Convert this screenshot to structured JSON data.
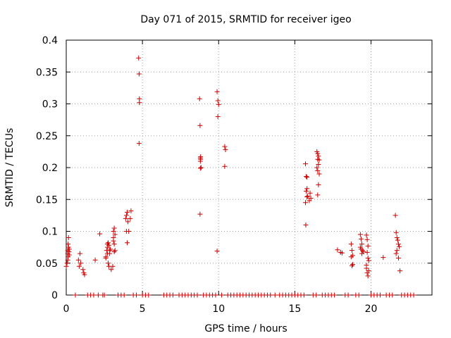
{
  "chart_data": {
    "type": "scatter",
    "title": "Day 071 of 2015, SRMTID for receiver igeo",
    "xlabel": "GPS time / hours",
    "ylabel": "SRMTID / TECUs",
    "xlim": [
      0,
      24
    ],
    "ylim": [
      0,
      0.4
    ],
    "xticks": [
      0,
      5,
      10,
      15,
      20
    ],
    "xtick_labels": [
      "0",
      "5",
      "10",
      "15",
      "20"
    ],
    "yticks": [
      0,
      0.05,
      0.1,
      0.15,
      0.2,
      0.25,
      0.3,
      0.35,
      0.4
    ],
    "ytick_labels": [
      "0",
      "0.05",
      "0.1",
      "0.15",
      "0.2",
      "0.25",
      "0.3",
      "0.35",
      "0.4"
    ],
    "grid": true,
    "marker": "plus",
    "color": "#cc0000",
    "series": [
      {
        "name": "SRMTID",
        "x": [
          0.0,
          0.05,
          0.1,
          0.1,
          0.12,
          0.15,
          0.18,
          0.2,
          0.15,
          0.1,
          0.2,
          0.12,
          0.8,
          0.85,
          0.9,
          0.95,
          1.1,
          1.15,
          1.2,
          1.9,
          2.2,
          2.6,
          2.65,
          2.7,
          2.7,
          2.75,
          2.8,
          2.85,
          2.9,
          2.75,
          2.8,
          2.85,
          2.6,
          2.7,
          3.1,
          3.15,
          3.2,
          3.1,
          3.15,
          3.2,
          3.1,
          3.05,
          3.15,
          2.95,
          3.9,
          3.95,
          4.0,
          4.05,
          4.1,
          3.95,
          4.0,
          4.2,
          4.25,
          4.75,
          4.78,
          4.8,
          4.8,
          4.78,
          8.75,
          8.78,
          8.8,
          8.8,
          8.82,
          8.85,
          8.8,
          8.82,
          8.78,
          9.9,
          9.95,
          10.0,
          9.95,
          9.9,
          10.4,
          10.45,
          10.4,
          15.7,
          15.75,
          15.8,
          15.8,
          15.75,
          15.85,
          15.7,
          15.8,
          15.72,
          16.0,
          16.05,
          15.95,
          16.45,
          16.5,
          16.55,
          16.5,
          16.6,
          16.55,
          16.45,
          16.5,
          16.6,
          16.55,
          16.5,
          17.8,
          18.0,
          18.1,
          18.7,
          18.75,
          18.8,
          18.7,
          18.8,
          18.75,
          19.3,
          19.35,
          19.4,
          19.3,
          19.45,
          19.5,
          19.35,
          19.4,
          19.7,
          19.75,
          19.8,
          19.75,
          19.8,
          19.7,
          19.85,
          19.75,
          19.8,
          19.7,
          19.85,
          20.8,
          21.6,
          21.65,
          21.7,
          21.75,
          21.8,
          21.85,
          21.7,
          21.65,
          21.8,
          21.9,
          0.6,
          1.4,
          1.6,
          1.8,
          2.1,
          2.4,
          2.5,
          3.4,
          3.6,
          3.8,
          4.4,
          4.6,
          5.0,
          5.2,
          5.4,
          6.4,
          6.6,
          6.8,
          7.0,
          7.4,
          7.6,
          7.8,
          8.0,
          8.2,
          8.4,
          8.6,
          9.0,
          9.2,
          9.4,
          9.6,
          9.8,
          10.2,
          10.6,
          10.8,
          11.0,
          11.2,
          11.4,
          11.6,
          11.8,
          12.0,
          12.2,
          12.4,
          12.6,
          12.8,
          13.0,
          13.2,
          13.4,
          13.7,
          14.0,
          14.2,
          14.4,
          14.6,
          14.8,
          15.0,
          15.2,
          15.4,
          15.6,
          16.2,
          16.4,
          16.8,
          17.0,
          17.2,
          17.4,
          17.6,
          18.3,
          18.5,
          19.0,
          19.2,
          20.0,
          20.2,
          20.4,
          20.6,
          21.0,
          21.2,
          21.4,
          22.0,
          22.2,
          22.4,
          22.6,
          22.8
        ],
        "y": [
          0.045,
          0.05,
          0.065,
          0.07,
          0.06,
          0.075,
          0.068,
          0.072,
          0.09,
          0.055,
          0.063,
          0.08,
          0.055,
          0.045,
          0.065,
          0.05,
          0.04,
          0.035,
          0.032,
          0.055,
          0.096,
          0.06,
          0.07,
          0.075,
          0.08,
          0.05,
          0.045,
          0.065,
          0.072,
          0.082,
          0.078,
          0.07,
          0.058,
          0.065,
          0.1,
          0.105,
          0.095,
          0.085,
          0.08,
          0.07,
          0.09,
          0.045,
          0.068,
          0.04,
          0.12,
          0.125,
          0.13,
          0.115,
          0.1,
          0.1,
          0.082,
          0.12,
          0.132,
          0.372,
          0.347,
          0.308,
          0.302,
          0.238,
          0.308,
          0.266,
          0.215,
          0.21,
          0.213,
          0.2,
          0.199,
          0.217,
          0.127,
          0.319,
          0.305,
          0.299,
          0.28,
          0.069,
          0.233,
          0.228,
          0.202,
          0.206,
          0.186,
          0.185,
          0.167,
          0.163,
          0.155,
          0.145,
          0.154,
          0.11,
          0.16,
          0.152,
          0.148,
          0.225,
          0.222,
          0.218,
          0.213,
          0.212,
          0.205,
          0.2,
          0.195,
          0.19,
          0.173,
          0.157,
          0.071,
          0.067,
          0.066,
          0.08,
          0.07,
          0.062,
          0.06,
          0.048,
          0.046,
          0.095,
          0.088,
          0.08,
          0.075,
          0.07,
          0.068,
          0.072,
          0.065,
          0.094,
          0.087,
          0.077,
          0.067,
          0.058,
          0.042,
          0.038,
          0.035,
          0.03,
          0.047,
          0.054,
          0.059,
          0.125,
          0.098,
          0.09,
          0.086,
          0.08,
          0.076,
          0.07,
          0.065,
          0.058,
          0.038,
          0,
          0,
          0,
          0,
          0,
          0,
          0,
          0,
          0,
          0,
          0,
          0,
          0,
          0,
          0,
          0,
          0,
          0,
          0,
          0,
          0,
          0,
          0,
          0,
          0,
          0,
          0,
          0,
          0,
          0,
          0,
          0,
          0,
          0,
          0,
          0,
          0,
          0,
          0,
          0,
          0,
          0,
          0,
          0,
          0,
          0,
          0,
          0,
          0,
          0,
          0,
          0,
          0,
          0,
          0,
          0,
          0,
          0,
          0,
          0,
          0,
          0,
          0,
          0,
          0,
          0,
          0,
          0,
          0,
          0,
          0,
          0,
          0,
          0,
          0,
          0,
          0,
          0,
          0,
          0
        ]
      }
    ]
  }
}
